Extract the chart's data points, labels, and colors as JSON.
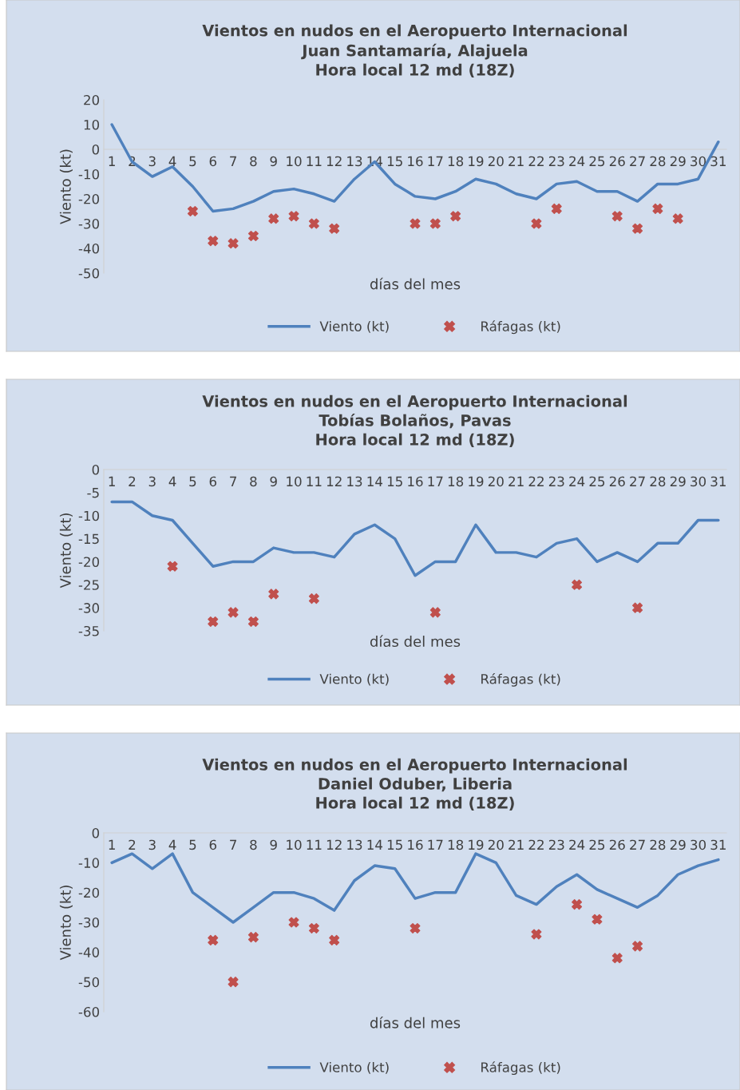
{
  "chart_data": [
    {
      "type": "line",
      "title": "Vientos en nudos en el Aeropuerto Internacional\nJuan Santamaría, Alajuela\nHora local 12 md (18Z)",
      "xlabel": "días del mes",
      "ylabel": "Viento (kt)",
      "categories": [
        "1",
        "2",
        "3",
        "4",
        "5",
        "6",
        "7",
        "8",
        "9",
        "10",
        "11",
        "12",
        "13",
        "14",
        "15",
        "16",
        "17",
        "18",
        "19",
        "20",
        "21",
        "22",
        "23",
        "24",
        "25",
        "26",
        "27",
        "28",
        "29",
        "30",
        "31"
      ],
      "ylim": [
        -50,
        20
      ],
      "yticks": [
        -50,
        -40,
        -30,
        -20,
        -10,
        0,
        10,
        20
      ],
      "grid": false,
      "legend": "bottom",
      "series": [
        {
          "name": "Viento (kt)",
          "color": "#4f81bd",
          "marker": "none",
          "line_style": "solid",
          "values": [
            10,
            -5,
            -11,
            -7,
            -15,
            -25,
            -24,
            -21,
            -17,
            -16,
            -18,
            -21,
            -12,
            -5,
            -14,
            -19,
            -20,
            -17,
            -12,
            -14,
            -18,
            -20,
            -14,
            -13,
            -17,
            -17,
            -21,
            -14,
            -14,
            -12,
            3
          ]
        },
        {
          "name": "Ráfagas (kt)",
          "type": "scatter",
          "color": "#c0504d",
          "marker": "cross",
          "values": [
            null,
            null,
            null,
            null,
            -25,
            -37,
            -38,
            -35,
            -28,
            -27,
            -30,
            -32,
            null,
            null,
            null,
            -30,
            -30,
            -27,
            null,
            null,
            null,
            -30,
            -24,
            null,
            null,
            -27,
            -32,
            -24,
            -28,
            null,
            null
          ]
        }
      ]
    },
    {
      "type": "line",
      "title": "Vientos en nudos en el Aeropuerto Internacional\nTobías Bolaños, Pavas\nHora local 12 md (18Z)",
      "xlabel": "días del mes",
      "ylabel": "Viento (kt)",
      "categories": [
        "1",
        "2",
        "3",
        "4",
        "5",
        "6",
        "7",
        "8",
        "9",
        "10",
        "11",
        "12",
        "13",
        "14",
        "15",
        "16",
        "17",
        "18",
        "19",
        "20",
        "21",
        "22",
        "23",
        "24",
        "25",
        "26",
        "27",
        "28",
        "29",
        "30",
        "31"
      ],
      "ylim": [
        -35,
        0
      ],
      "yticks": [
        -35,
        -30,
        -25,
        -20,
        -15,
        -10,
        -5,
        0
      ],
      "grid": false,
      "legend": "bottom",
      "series": [
        {
          "name": "Viento (kt)",
          "color": "#4f81bd",
          "marker": "none",
          "line_style": "solid",
          "values": [
            -7,
            -7,
            -10,
            -11,
            -16,
            -21,
            -20,
            -20,
            -17,
            -18,
            -18,
            -19,
            -14,
            -12,
            -15,
            -23,
            -20,
            -20,
            -12,
            -18,
            -18,
            -19,
            -16,
            -15,
            -20,
            -18,
            -20,
            -16,
            -16,
            -11,
            -11
          ]
        },
        {
          "name": "Ráfagas (kt)",
          "type": "scatter",
          "color": "#c0504d",
          "marker": "cross",
          "values": [
            null,
            null,
            null,
            -21,
            null,
            -33,
            -31,
            -33,
            -27,
            null,
            -28,
            null,
            null,
            null,
            null,
            null,
            -31,
            null,
            null,
            null,
            null,
            null,
            null,
            -25,
            null,
            null,
            -30,
            null,
            null,
            null,
            null
          ]
        }
      ]
    },
    {
      "type": "line",
      "title": "Vientos en nudos en el Aeropuerto Internacional\nDaniel Oduber, Liberia\nHora local 12 md (18Z)",
      "xlabel": "días del mes",
      "ylabel": "Viento (kt)",
      "categories": [
        "1",
        "2",
        "3",
        "4",
        "5",
        "6",
        "7",
        "8",
        "9",
        "10",
        "11",
        "12",
        "13",
        "14",
        "15",
        "16",
        "17",
        "18",
        "19",
        "20",
        "21",
        "22",
        "23",
        "24",
        "25",
        "26",
        "27",
        "28",
        "29",
        "30",
        "31"
      ],
      "ylim": [
        -60,
        0
      ],
      "yticks": [
        -60,
        -50,
        -40,
        -30,
        -20,
        -10,
        0
      ],
      "grid": false,
      "legend": "bottom",
      "series": [
        {
          "name": "Viento (kt)",
          "color": "#4f81bd",
          "marker": "none",
          "line_style": "solid",
          "values": [
            -10,
            -7,
            -12,
            -7,
            -20,
            -25,
            -30,
            -25,
            -20,
            -20,
            -22,
            -26,
            -16,
            -11,
            -12,
            -22,
            -20,
            -20,
            -7,
            -10,
            -21,
            -24,
            -18,
            -14,
            -19,
            -22,
            -25,
            -21,
            -14,
            -11,
            -9
          ]
        },
        {
          "name": "Ráfagas (kt)",
          "type": "scatter",
          "color": "#c0504d",
          "marker": "cross",
          "values": [
            null,
            null,
            null,
            null,
            null,
            -36,
            -50,
            -35,
            null,
            -30,
            -32,
            -36,
            null,
            null,
            null,
            -32,
            null,
            null,
            null,
            null,
            null,
            -34,
            null,
            -24,
            -29,
            -42,
            -38,
            null,
            null,
            null,
            null
          ]
        }
      ]
    }
  ]
}
